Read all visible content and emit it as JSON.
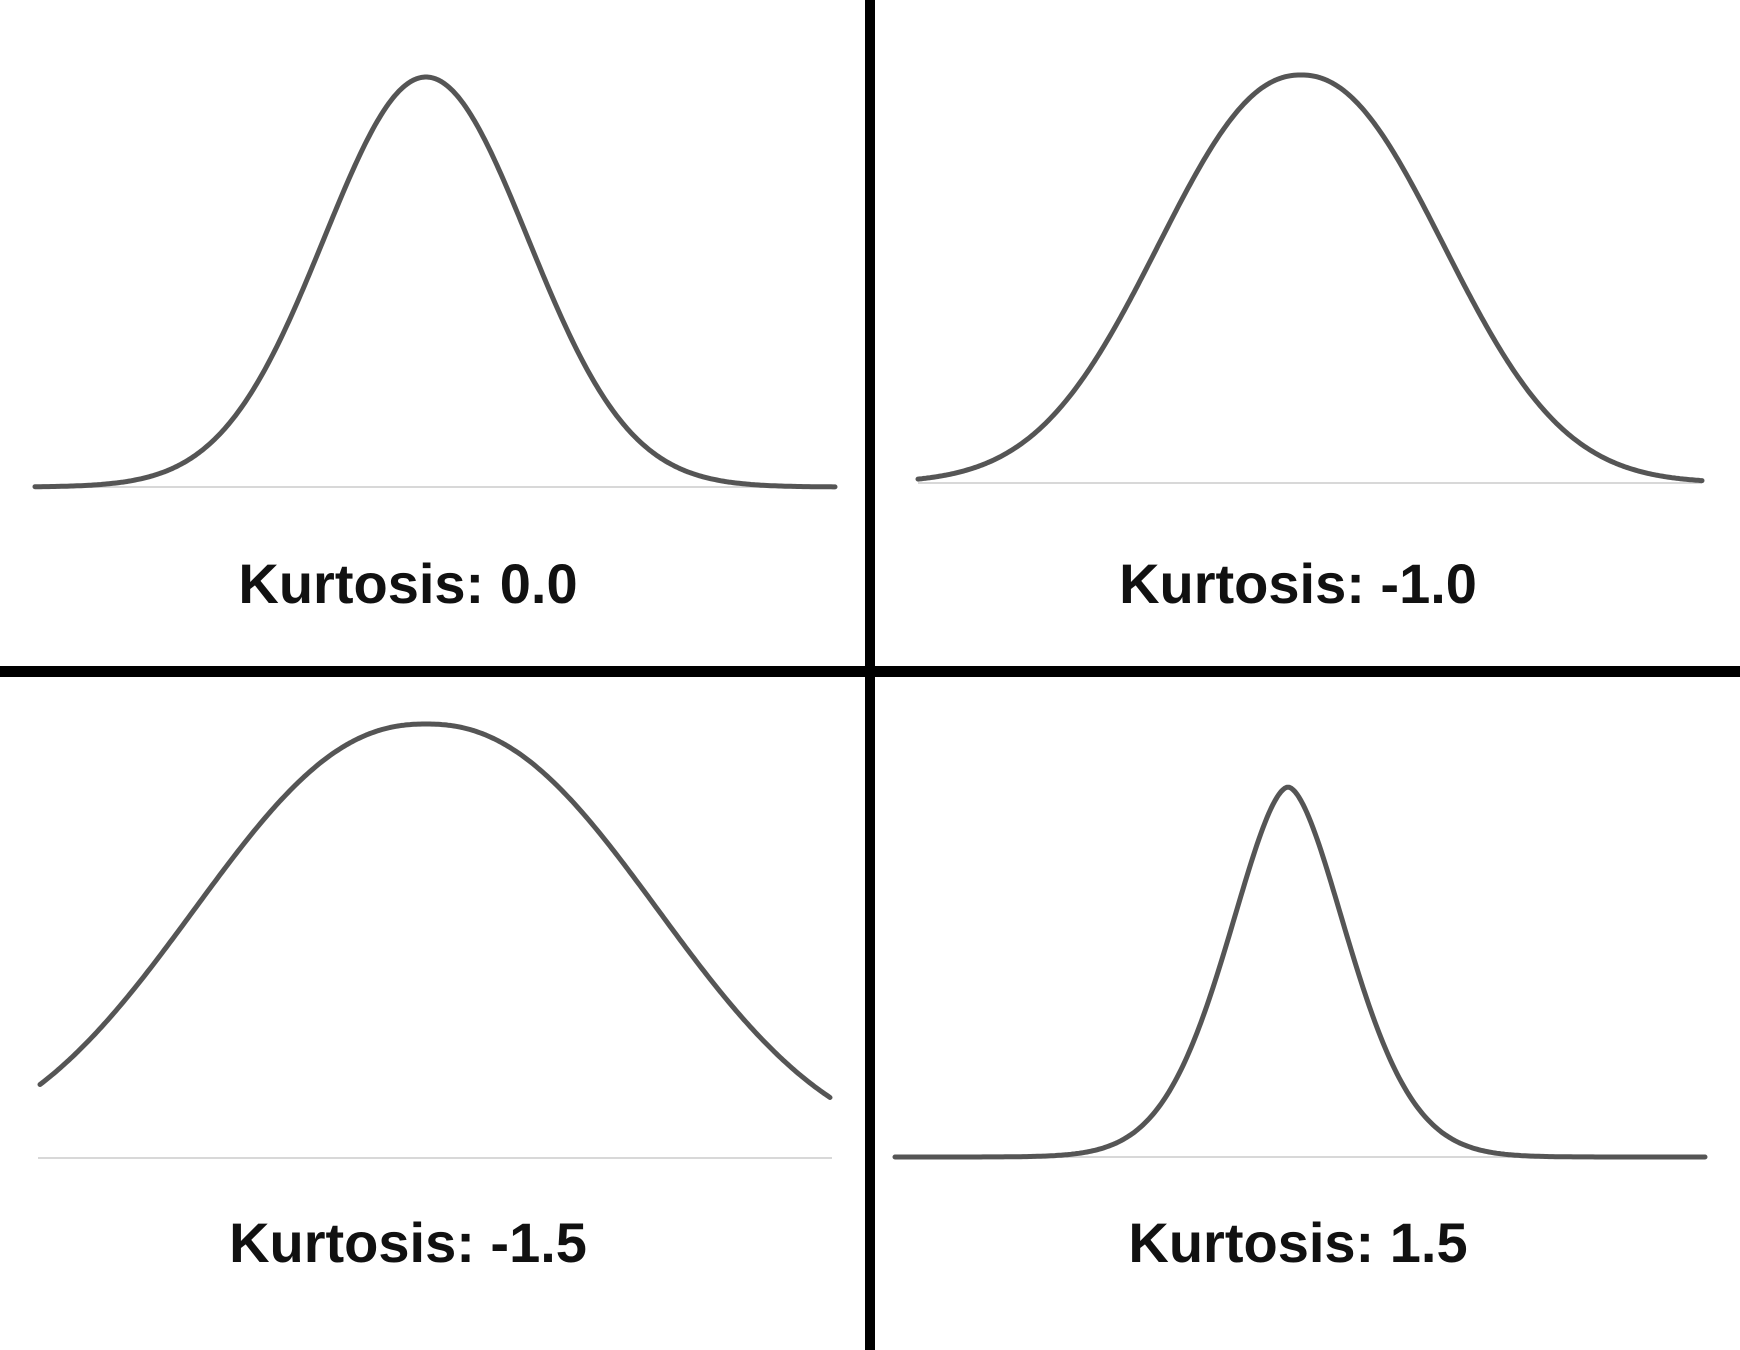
{
  "chart_data": [
    {
      "type": "line",
      "shape": "bell-curve",
      "kurtosis": 0.0,
      "label": "Kurtosis: 0.0"
    },
    {
      "type": "line",
      "shape": "bell-curve",
      "kurtosis": -1.0,
      "label": "Kurtosis: -1.0"
    },
    {
      "type": "line",
      "shape": "bell-curve",
      "kurtosis": -1.5,
      "label": "Kurtosis: -1.5"
    },
    {
      "type": "line",
      "shape": "bell-curve",
      "kurtosis": 1.5,
      "label": "Kurtosis: 1.5"
    }
  ],
  "colors": {
    "curve": "#555555",
    "baseline": "#d8d8d8",
    "divider": "#000000",
    "background": "#ffffff"
  }
}
